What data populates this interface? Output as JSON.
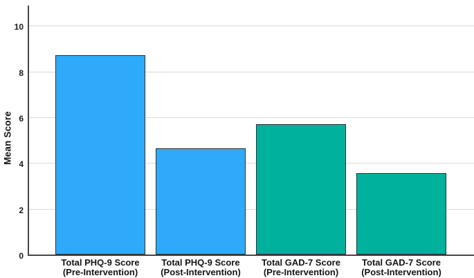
{
  "chart_data": {
    "type": "bar",
    "title": "",
    "ylabel": "Mean Score",
    "xlabel": "",
    "categories": [
      "Total PHQ-9 Score\n(Pre-Intervention)",
      "Total PHQ-9 Score\n(Post-Intervention)",
      "Total GAD-7 Score\n(Pre-Intervention)",
      "Total GAD-7 Score\n(Post-Intervention)"
    ],
    "values": [
      8.7,
      4.65,
      5.7,
      3.55
    ],
    "bar_colors": [
      "#2FAAFB",
      "#2FAAFB",
      "#00B19E",
      "#00B19E"
    ],
    "yticks": [
      0,
      2,
      4,
      6,
      8,
      10
    ],
    "ylim": [
      0,
      10.94
    ],
    "grid": "horizontal-only",
    "legend": "none",
    "colors": {
      "phq9_blue": "#2FAAFB",
      "gad7_teal": "#00B19E",
      "gridline": "#D9D9D9",
      "axis": "#454545",
      "bar_border": "#2E2E2E",
      "text": "#141414",
      "background": "#FFFFFF"
    }
  }
}
